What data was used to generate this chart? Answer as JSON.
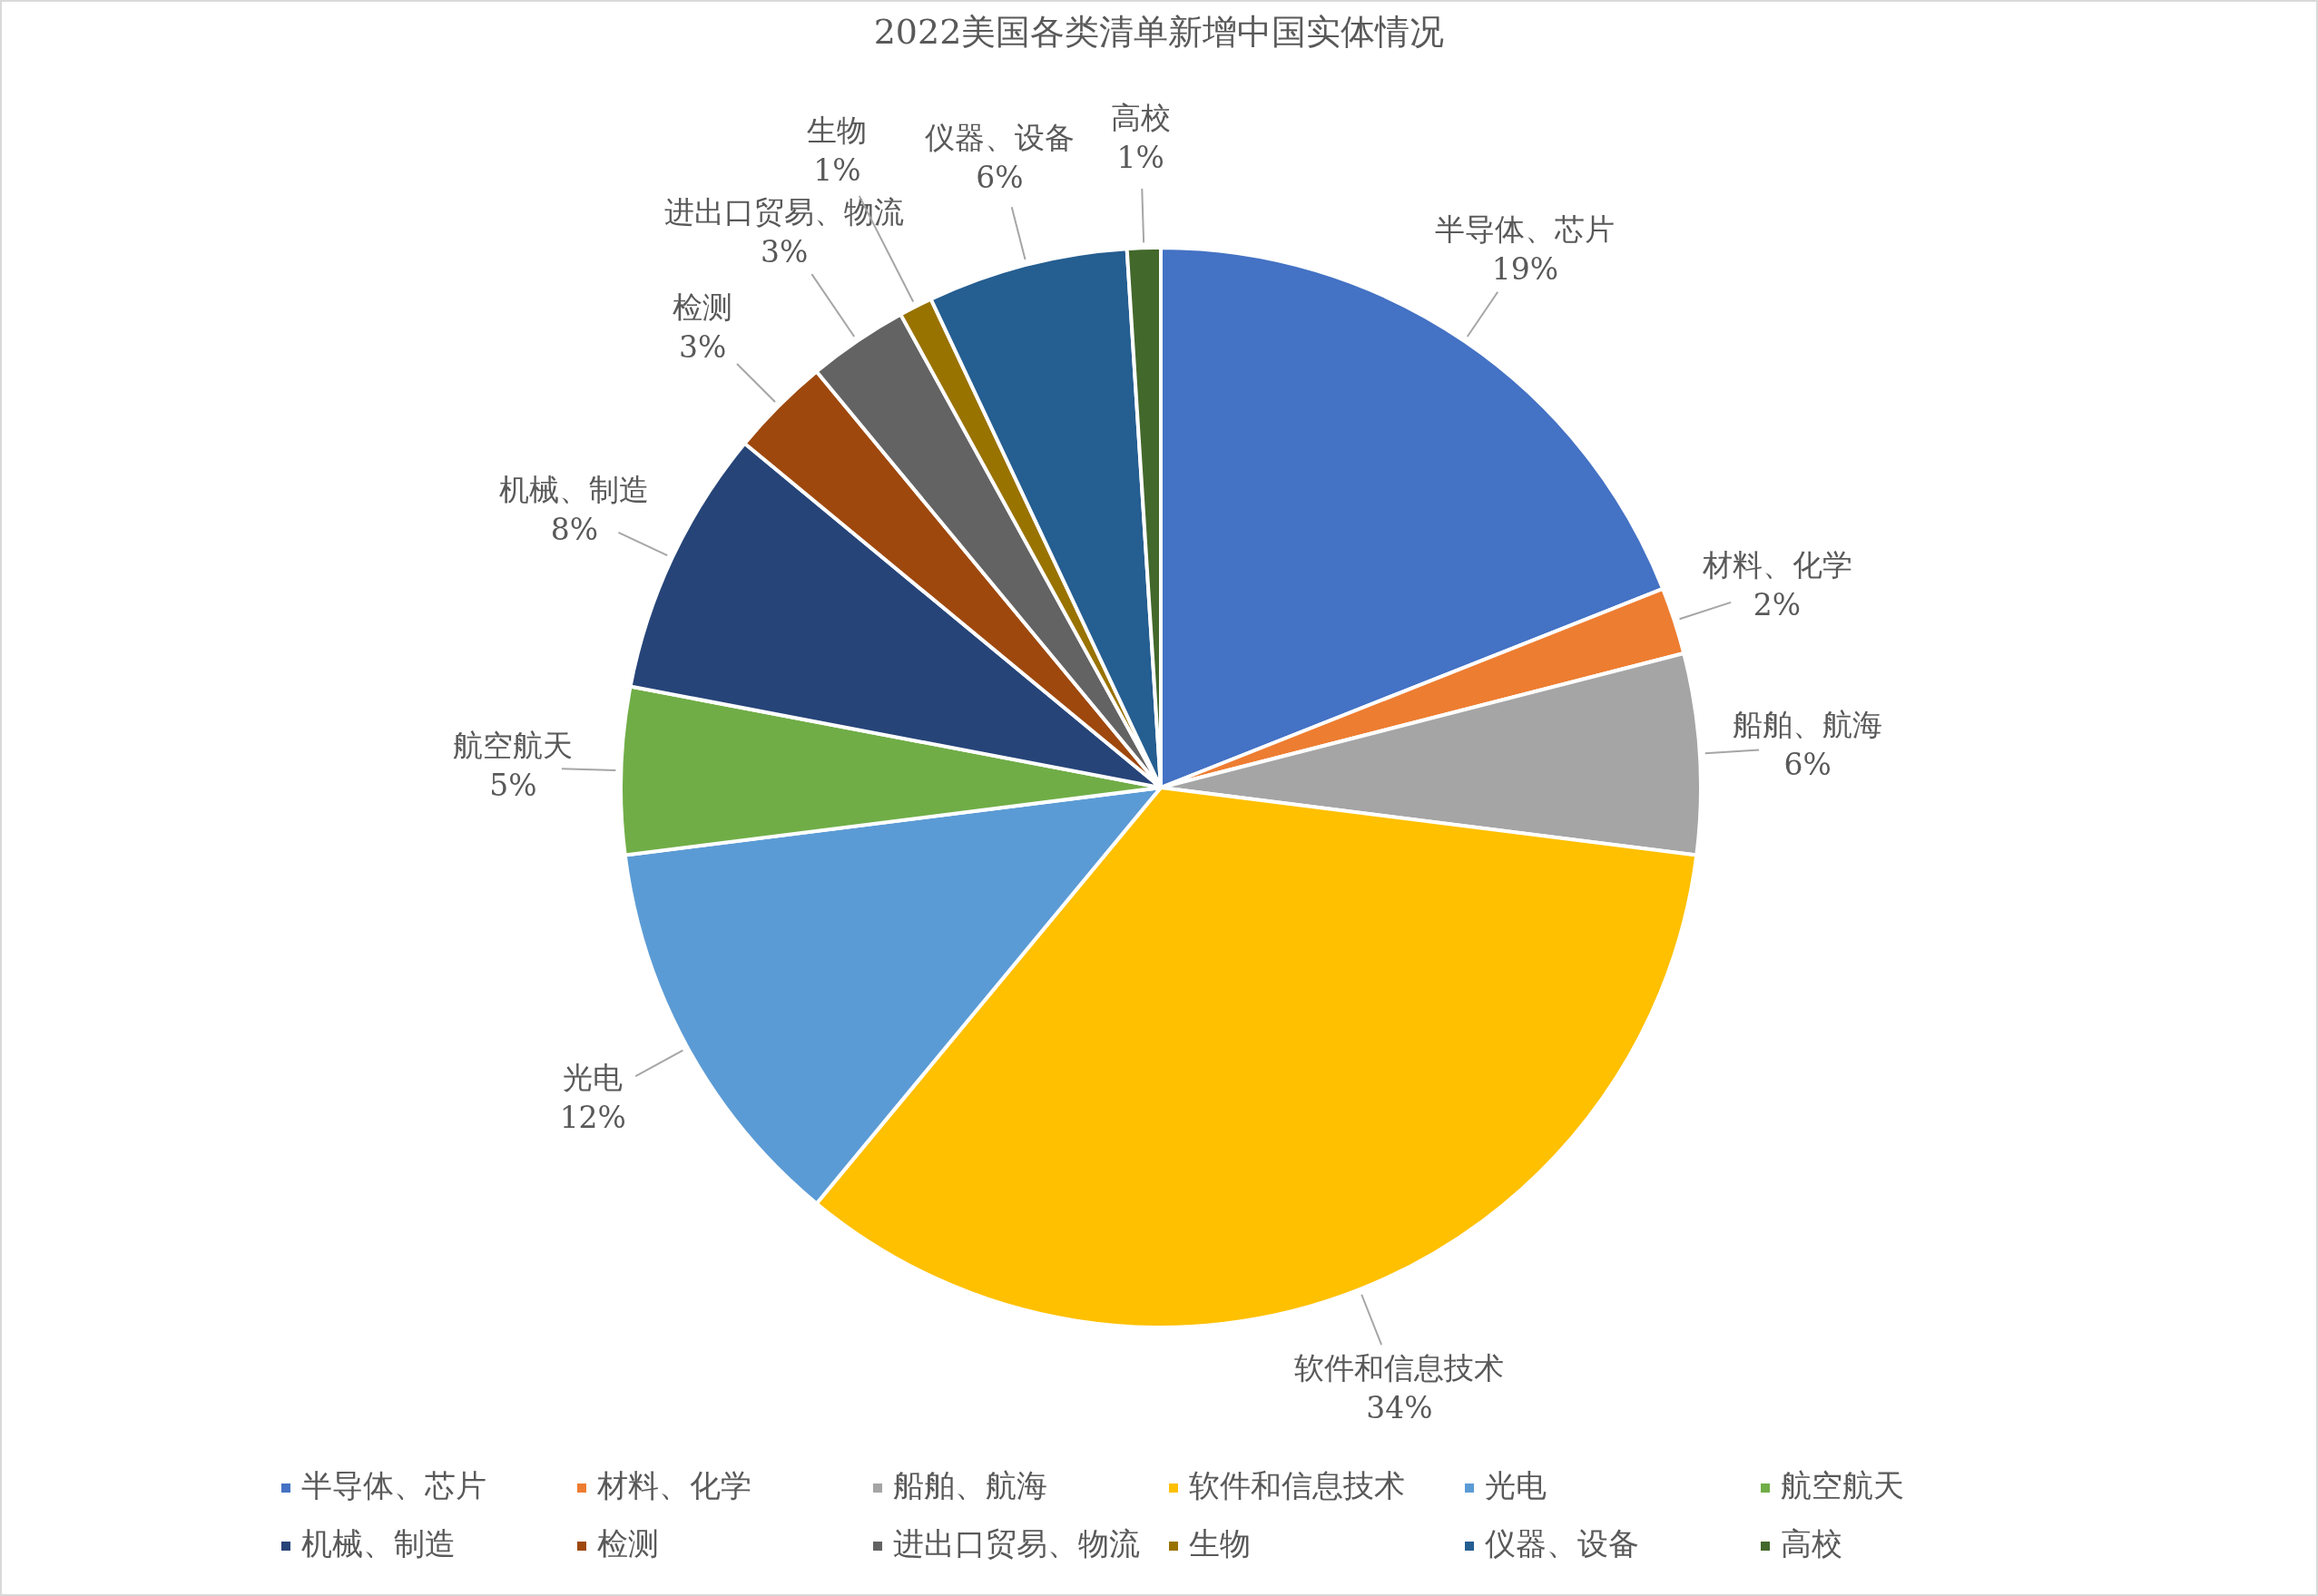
{
  "chart_data": {
    "type": "pie",
    "title": "2022美国各类清单新增中国实体情况",
    "categories": [
      "半导体、芯片",
      "材料、化学",
      "船舶、航海",
      "软件和信息技术",
      "光电",
      "航空航天",
      "机械、制造",
      "检测",
      "进出口贸易、物流",
      "生物",
      "仪器、设备",
      "高校"
    ],
    "values": [
      19,
      2,
      6,
      34,
      12,
      5,
      8,
      3,
      3,
      1,
      6,
      1
    ],
    "value_labels": [
      "19%",
      "2%",
      "6%",
      "34%",
      "12%",
      "5%",
      "8%",
      "3%",
      "3%",
      "1%",
      "6%",
      "1%"
    ],
    "colors": [
      "#4472c4",
      "#ed7d31",
      "#a5a5a5",
      "#ffc000",
      "#5b9bd5",
      "#70ad47",
      "#264478",
      "#9e480e",
      "#636363",
      "#997300",
      "#255e91",
      "#43682b"
    ],
    "legend": "bottom"
  }
}
